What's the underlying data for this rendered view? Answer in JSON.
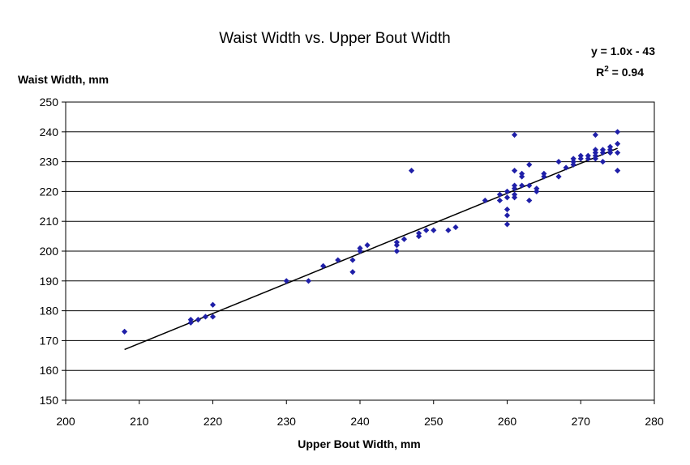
{
  "chart_data": {
    "type": "scatter",
    "title": "Waist Width vs. Upper Bout Width",
    "xlabel": "Upper Bout Width, mm",
    "ylabel": "Waist Width, mm",
    "xlim": [
      200,
      280
    ],
    "ylim": [
      150,
      250
    ],
    "xticks": [
      200,
      210,
      220,
      230,
      240,
      250,
      260,
      270,
      280
    ],
    "yticks": [
      150,
      160,
      170,
      180,
      190,
      200,
      210,
      220,
      230,
      240,
      250
    ],
    "grid": "horizontal",
    "legend": "none",
    "marker_color": "#1f1fa8",
    "trendline": {
      "equation_prefix": "y = 1.0x - 43",
      "r2_label": "R",
      "r2_sup": "2",
      "r2_value": " = 0.94",
      "x_range": [
        208,
        275
      ],
      "y_range": [
        167,
        234.5
      ]
    },
    "points": [
      [
        208,
        173
      ],
      [
        217,
        176
      ],
      [
        217,
        177
      ],
      [
        218,
        177
      ],
      [
        219,
        178
      ],
      [
        220,
        178
      ],
      [
        220,
        182
      ],
      [
        230,
        190
      ],
      [
        233,
        190
      ],
      [
        235,
        195
      ],
      [
        237,
        197
      ],
      [
        239,
        193
      ],
      [
        239,
        197
      ],
      [
        240,
        200
      ],
      [
        240,
        201
      ],
      [
        241,
        202
      ],
      [
        245,
        200
      ],
      [
        245,
        202
      ],
      [
        245,
        203
      ],
      [
        246,
        204
      ],
      [
        247,
        227
      ],
      [
        248,
        205
      ],
      [
        248,
        206
      ],
      [
        249,
        207
      ],
      [
        250,
        207
      ],
      [
        252,
        207
      ],
      [
        253,
        208
      ],
      [
        257,
        217
      ],
      [
        259,
        217
      ],
      [
        259,
        219
      ],
      [
        260,
        209
      ],
      [
        260,
        212
      ],
      [
        260,
        214
      ],
      [
        260,
        218
      ],
      [
        260,
        220
      ],
      [
        261,
        218
      ],
      [
        261,
        219
      ],
      [
        261,
        221
      ],
      [
        261,
        222
      ],
      [
        261,
        227
      ],
      [
        261,
        239
      ],
      [
        262,
        222
      ],
      [
        262,
        225
      ],
      [
        262,
        226
      ],
      [
        263,
        217
      ],
      [
        263,
        222
      ],
      [
        263,
        229
      ],
      [
        264,
        220
      ],
      [
        264,
        221
      ],
      [
        265,
        225
      ],
      [
        265,
        226
      ],
      [
        267,
        225
      ],
      [
        267,
        230
      ],
      [
        268,
        228
      ],
      [
        269,
        229
      ],
      [
        269,
        230
      ],
      [
        269,
        231
      ],
      [
        270,
        231
      ],
      [
        270,
        232
      ],
      [
        271,
        231
      ],
      [
        271,
        232
      ],
      [
        272,
        231
      ],
      [
        272,
        232
      ],
      [
        272,
        233
      ],
      [
        272,
        234
      ],
      [
        272,
        239
      ],
      [
        273,
        230
      ],
      [
        273,
        233
      ],
      [
        273,
        234
      ],
      [
        274,
        233
      ],
      [
        274,
        234
      ],
      [
        274,
        235
      ],
      [
        275,
        227
      ],
      [
        275,
        233
      ],
      [
        275,
        236
      ],
      [
        275,
        240
      ]
    ]
  }
}
